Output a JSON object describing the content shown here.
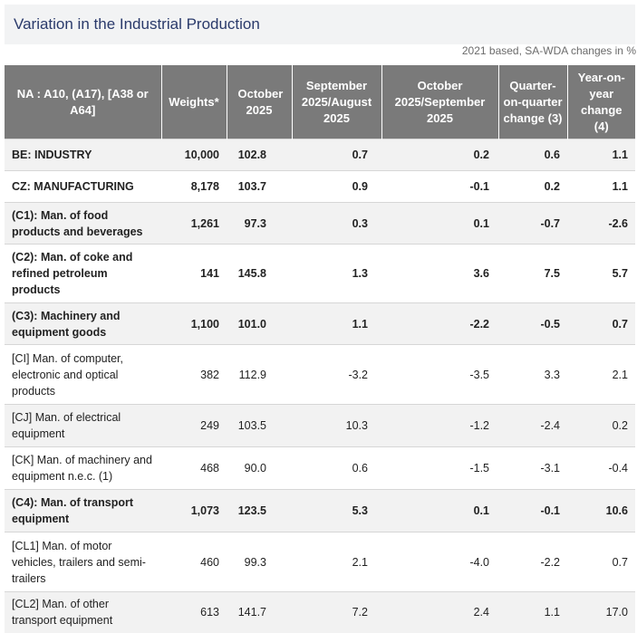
{
  "title": "Variation in the Industrial Production",
  "subtitle": "2021 based, SA-WDA changes in %",
  "headers": [
    "NA : A10, (A17), [A38 or A64]",
    "Weights*",
    "October 2025",
    "September 2025/August 2025",
    "October 2025/September 2025",
    "Quarter-on-quarter change (3)",
    "Year-on-year change (4)"
  ],
  "rows": [
    {
      "label": "BE: INDUSTRY",
      "weight": "10,000",
      "oct": "102.8",
      "sep_aug": "0.7",
      "oct_sep": "0.2",
      "qoq": "0.6",
      "yoy": "1.1"
    },
    {
      "label": "CZ: MANUFACTURING",
      "weight": "8,178",
      "oct": "103.7",
      "sep_aug": "0.9",
      "oct_sep": "-0.1",
      "qoq": "0.2",
      "yoy": "1.1"
    },
    {
      "label": "(C1): Man. of food products and beverages",
      "weight": "1,261",
      "oct": "97.3",
      "sep_aug": "0.3",
      "oct_sep": "0.1",
      "qoq": "-0.7",
      "yoy": "-2.6"
    },
    {
      "label": "(C2): Man. of coke and refined petroleum products",
      "weight": "141",
      "oct": "145.8",
      "sep_aug": "1.3",
      "oct_sep": "3.6",
      "qoq": "7.5",
      "yoy": "5.7"
    },
    {
      "label": "(C3): Machinery and equipment goods",
      "weight": "1,100",
      "oct": "101.0",
      "sep_aug": "1.1",
      "oct_sep": "-2.2",
      "qoq": "-0.5",
      "yoy": "0.7"
    },
    {
      "label": "[CI] Man. of computer, electronic and optical products",
      "weight": "382",
      "oct": "112.9",
      "sep_aug": "-3.2",
      "oct_sep": "-3.5",
      "qoq": "3.3",
      "yoy": "2.1"
    },
    {
      "label": "[CJ] Man. of electrical equipment",
      "weight": "249",
      "oct": "103.5",
      "sep_aug": "10.3",
      "oct_sep": "-1.2",
      "qoq": "-2.4",
      "yoy": "0.2"
    },
    {
      "label": "[CK] Man. of machinery and equipment n.e.c. (1)",
      "weight": "468",
      "oct": "90.0",
      "sep_aug": "0.6",
      "oct_sep": "-1.5",
      "qoq": "-3.1",
      "yoy": "-0.4"
    },
    {
      "label": "(C4): Man. of transport equipment",
      "weight": "1,073",
      "oct": "123.5",
      "sep_aug": "5.3",
      "oct_sep": "0.1",
      "qoq": "-0.1",
      "yoy": "10.6"
    },
    {
      "label": "[CL1] Man. of motor vehicles, trailers and semi-trailers",
      "weight": "460",
      "oct": "99.3",
      "sep_aug": "2.1",
      "oct_sep": "-4.0",
      "qoq": "-2.2",
      "yoy": "0.7"
    },
    {
      "label": "[CL2] Man. of other transport equipment",
      "weight": "613",
      "oct": "141.7",
      "sep_aug": "7.2",
      "oct_sep": "2.4",
      "qoq": "1.1",
      "yoy": "17.0"
    }
  ]
}
